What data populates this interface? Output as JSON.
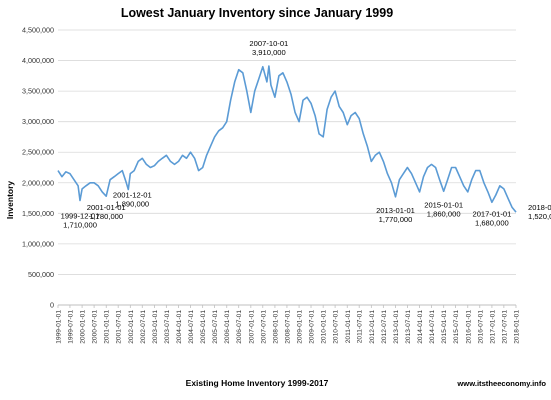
{
  "chart_data": {
    "type": "line",
    "title": "Lowest January Inventory since January 1999",
    "xlabel": "Existing Home Inventory 1999-2017",
    "ylabel": "Inventory",
    "source": "www.itstheeconomy.info",
    "ylim": [
      0,
      4500000
    ],
    "ytick_labels": [
      "0",
      "500,000",
      "1,000,000",
      "1,500,000",
      "2,000,000",
      "2,500,000",
      "3,000,000",
      "3,500,000",
      "4,000,000",
      "4,500,000"
    ],
    "ytick_values": [
      0,
      500000,
      1000000,
      1500000,
      2000000,
      2500000,
      3000000,
      3500000,
      4000000,
      4500000
    ],
    "xtick_labels": [
      "1999-01-01",
      "1999-07-01",
      "2000-01-01",
      "2000-07-01",
      "2001-01-01",
      "2001-07-01",
      "2002-01-01",
      "2002-07-01",
      "2003-01-01",
      "2003-07-01",
      "2004-01-01",
      "2004-07-01",
      "2005-01-01",
      "2005-07-01",
      "2006-01-01",
      "2006-07-01",
      "2007-01-01",
      "2007-07-01",
      "2008-01-01",
      "2008-07-01",
      "2009-01-01",
      "2009-07-01",
      "2010-01-01",
      "2010-07-01",
      "2011-01-01",
      "2011-07-01",
      "2012-01-01",
      "2012-07-01",
      "2013-01-01",
      "2013-07-01",
      "2014-01-01",
      "2014-07-01",
      "2015-01-01",
      "2015-07-01",
      "2016-01-01",
      "2016-07-01",
      "2017-01-01",
      "2017-07-01",
      "2018-01-01"
    ],
    "grid": true,
    "legend": "none",
    "line_color": "#5b9bd5",
    "series": [
      {
        "x": [
          "1999-01-01",
          "1999-03-01",
          "1999-05-01",
          "1999-07-01",
          "1999-09-01",
          "1999-11-01",
          "1999-12-01",
          "2000-01-01",
          "2000-03-01",
          "2000-05-01",
          "2000-07-01",
          "2000-09-01",
          "2000-11-01",
          "2001-01-01",
          "2001-03-01",
          "2001-05-01",
          "2001-07-01",
          "2001-09-01",
          "2001-11-01",
          "2001-12-01",
          "2002-01-01",
          "2002-03-01",
          "2002-05-01",
          "2002-07-01",
          "2002-09-01",
          "2002-11-01",
          "2003-01-01",
          "2003-03-01",
          "2003-05-01",
          "2003-07-01",
          "2003-09-01",
          "2003-11-01",
          "2004-01-01",
          "2004-03-01",
          "2004-05-01",
          "2004-07-01",
          "2004-09-01",
          "2004-11-01",
          "2005-01-01",
          "2005-03-01",
          "2005-05-01",
          "2005-07-01",
          "2005-09-01",
          "2005-11-01",
          "2006-01-01",
          "2006-03-01",
          "2006-05-01",
          "2006-07-01",
          "2006-09-01",
          "2006-11-01",
          "2007-01-01",
          "2007-03-01",
          "2007-05-01",
          "2007-07-01",
          "2007-09-01",
          "2007-10-01",
          "2007-11-01",
          "2008-01-01",
          "2008-03-01",
          "2008-05-01",
          "2008-07-01",
          "2008-09-01",
          "2008-11-01",
          "2009-01-01",
          "2009-03-01",
          "2009-05-01",
          "2009-07-01",
          "2009-09-01",
          "2009-11-01",
          "2010-01-01",
          "2010-03-01",
          "2010-05-01",
          "2010-07-01",
          "2010-09-01",
          "2010-11-01",
          "2011-01-01",
          "2011-03-01",
          "2011-05-01",
          "2011-07-01",
          "2011-09-01",
          "2011-11-01",
          "2012-01-01",
          "2012-03-01",
          "2012-05-01",
          "2012-07-01",
          "2012-09-01",
          "2012-11-01",
          "2013-01-01",
          "2013-03-01",
          "2013-05-01",
          "2013-07-01",
          "2013-09-01",
          "2013-11-01",
          "2014-01-01",
          "2014-03-01",
          "2014-05-01",
          "2014-07-01",
          "2014-09-01",
          "2014-11-01",
          "2015-01-01",
          "2015-03-01",
          "2015-05-01",
          "2015-07-01",
          "2015-09-01",
          "2015-11-01",
          "2016-01-01",
          "2016-03-01",
          "2016-05-01",
          "2016-07-01",
          "2016-09-01",
          "2016-11-01",
          "2017-01-01",
          "2017-03-01",
          "2017-05-01",
          "2017-07-01",
          "2017-09-01",
          "2017-11-01",
          "2018-01-01"
        ],
        "values": [
          2200000,
          2100000,
          2180000,
          2150000,
          2050000,
          1950000,
          1710000,
          1900000,
          1950000,
          2000000,
          2000000,
          1950000,
          1850000,
          1780000,
          2050000,
          2100000,
          2150000,
          2200000,
          2000000,
          1890000,
          2150000,
          2200000,
          2350000,
          2400000,
          2300000,
          2250000,
          2280000,
          2350000,
          2400000,
          2450000,
          2350000,
          2300000,
          2350000,
          2450000,
          2400000,
          2500000,
          2400000,
          2200000,
          2250000,
          2450000,
          2600000,
          2750000,
          2850000,
          2900000,
          3000000,
          3350000,
          3650000,
          3850000,
          3800000,
          3500000,
          3150000,
          3500000,
          3700000,
          3900000,
          3650000,
          3910000,
          3600000,
          3400000,
          3750000,
          3800000,
          3650000,
          3450000,
          3150000,
          3000000,
          3350000,
          3400000,
          3300000,
          3100000,
          2800000,
          2750000,
          3200000,
          3400000,
          3500000,
          3250000,
          3150000,
          2950000,
          3100000,
          3150000,
          3050000,
          2800000,
          2600000,
          2350000,
          2450000,
          2500000,
          2350000,
          2150000,
          2000000,
          1770000,
          2050000,
          2150000,
          2250000,
          2150000,
          2000000,
          1850000,
          2100000,
          2250000,
          2300000,
          2250000,
          2050000,
          1860000,
          2050000,
          2250000,
          2250000,
          2100000,
          1950000,
          1850000,
          2050000,
          2200000,
          2200000,
          2000000,
          1850000,
          1680000,
          1800000,
          1950000,
          1900000,
          1750000,
          1600000,
          1520000
        ]
      }
    ],
    "annotations": [
      {
        "date": "1999-12-01",
        "value": "1,710,000"
      },
      {
        "date": "2001-01-01",
        "value": "1,780,000"
      },
      {
        "date": "2001-12-01",
        "value": "1,890,000"
      },
      {
        "date": "2007-10-01",
        "value": "3,910,000"
      },
      {
        "date": "2013-01-01",
        "value": "1,770,000"
      },
      {
        "date": "2015-01-01",
        "value": "1,860,000"
      },
      {
        "date": "2017-01-01",
        "value": "1,680,000"
      },
      {
        "date": "2018-01-01",
        "value": "1,520,000"
      }
    ]
  }
}
